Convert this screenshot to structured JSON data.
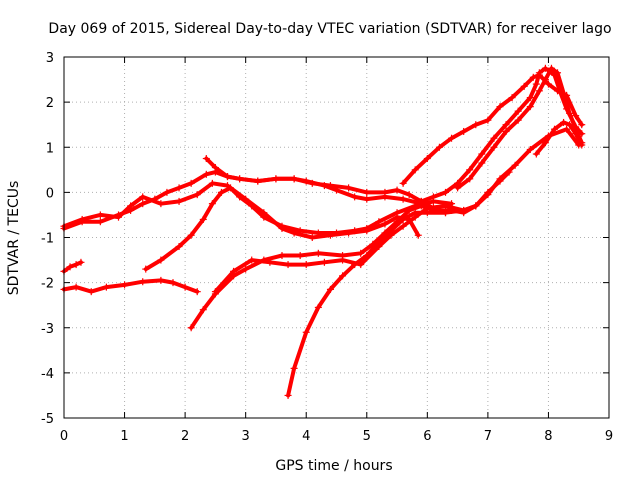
{
  "chart_data": {
    "type": "scatter",
    "title": "Day 069 of 2015, Sidereal Day-to-day VTEC variation (SDTVAR) for receiver lago",
    "xlabel": "GPS time / hours",
    "ylabel": "SDTVAR / TECUs",
    "xlim": [
      0,
      9
    ],
    "ylim": [
      -5,
      3
    ],
    "x_ticks": [
      "0",
      "1",
      "2",
      "3",
      "4",
      "5",
      "6",
      "7",
      "8",
      "9"
    ],
    "y_ticks": [
      "-5",
      "-4",
      "-3",
      "-2",
      "-1",
      "0",
      "1",
      "2",
      "3"
    ],
    "grid": true,
    "marker": "plus",
    "color": "#ff0000",
    "series": [
      {
        "points": [
          [
            0.0,
            -0.8
          ],
          [
            0.3,
            -0.65
          ],
          [
            0.6,
            -0.65
          ],
          [
            0.9,
            -0.5
          ],
          [
            1.1,
            -0.4
          ],
          [
            1.3,
            -0.25
          ],
          [
            1.5,
            -0.15
          ],
          [
            1.7,
            0.0
          ],
          [
            1.9,
            0.1
          ],
          [
            2.1,
            0.2
          ],
          [
            2.35,
            0.4
          ],
          [
            2.5,
            0.45
          ],
          [
            2.7,
            0.35
          ],
          [
            2.9,
            0.3
          ],
          [
            3.2,
            0.25
          ],
          [
            3.5,
            0.3
          ],
          [
            3.8,
            0.3
          ],
          [
            4.0,
            0.25
          ],
          [
            4.3,
            0.15
          ],
          [
            4.5,
            0.05
          ],
          [
            4.8,
            -0.1
          ],
          [
            5.0,
            -0.15
          ],
          [
            5.3,
            -0.1
          ],
          [
            5.6,
            -0.15
          ],
          [
            5.9,
            -0.25
          ],
          [
            6.2,
            -0.4
          ]
        ]
      },
      {
        "points": [
          [
            0.0,
            -0.75
          ],
          [
            0.3,
            -0.6
          ],
          [
            0.6,
            -0.5
          ],
          [
            0.9,
            -0.55
          ],
          [
            1.1,
            -0.3
          ],
          [
            1.3,
            -0.1
          ],
          [
            1.6,
            -0.25
          ],
          [
            1.9,
            -0.2
          ],
          [
            2.2,
            -0.05
          ],
          [
            2.45,
            0.2
          ],
          [
            2.7,
            0.15
          ],
          [
            3.0,
            -0.15
          ],
          [
            3.3,
            -0.45
          ],
          [
            3.6,
            -0.8
          ],
          [
            3.8,
            -0.9
          ],
          [
            4.1,
            -1.0
          ],
          [
            4.4,
            -0.95
          ],
          [
            4.7,
            -0.9
          ],
          [
            5.0,
            -0.85
          ],
          [
            5.3,
            -0.7
          ],
          [
            5.5,
            -0.55
          ],
          [
            5.7,
            -0.6
          ],
          [
            5.85,
            -0.95
          ]
        ]
      },
      {
        "points": [
          [
            0.0,
            -1.75
          ],
          [
            0.1,
            -1.65
          ],
          [
            0.2,
            -1.6
          ],
          [
            0.28,
            -1.55
          ]
        ]
      },
      {
        "points": [
          [
            0.0,
            -2.15
          ],
          [
            0.2,
            -2.1
          ],
          [
            0.45,
            -2.2
          ],
          [
            0.7,
            -2.1
          ],
          [
            1.0,
            -2.05
          ],
          [
            1.3,
            -1.98
          ],
          [
            1.6,
            -1.95
          ],
          [
            1.8,
            -2.0
          ],
          [
            2.0,
            -2.1
          ],
          [
            2.2,
            -2.2
          ]
        ]
      },
      {
        "points": [
          [
            1.35,
            -1.7
          ],
          [
            1.6,
            -1.5
          ],
          [
            1.9,
            -1.2
          ],
          [
            2.1,
            -0.95
          ],
          [
            2.3,
            -0.6
          ],
          [
            2.45,
            -0.25
          ],
          [
            2.6,
            0.0
          ],
          [
            2.75,
            0.1
          ],
          [
            2.9,
            -0.1
          ],
          [
            3.1,
            -0.3
          ],
          [
            3.3,
            -0.55
          ],
          [
            3.6,
            -0.75
          ],
          [
            3.9,
            -0.85
          ],
          [
            4.2,
            -0.9
          ],
          [
            4.5,
            -0.9
          ],
          [
            4.8,
            -0.85
          ],
          [
            5.0,
            -0.8
          ],
          [
            5.2,
            -0.65
          ],
          [
            5.5,
            -0.45
          ],
          [
            5.8,
            -0.3
          ],
          [
            6.1,
            -0.2
          ],
          [
            6.4,
            -0.25
          ]
        ]
      },
      {
        "points": [
          [
            2.35,
            0.75
          ],
          [
            2.5,
            0.55
          ],
          [
            2.7,
            0.35
          ],
          [
            2.9,
            0.3
          ],
          [
            3.2,
            0.25
          ],
          [
            3.5,
            0.3
          ],
          [
            3.8,
            0.3
          ],
          [
            4.1,
            0.2
          ],
          [
            4.4,
            0.15
          ],
          [
            4.7,
            0.1
          ],
          [
            5.0,
            0.0
          ],
          [
            5.3,
            0.0
          ],
          [
            5.5,
            0.05
          ],
          [
            5.7,
            -0.05
          ],
          [
            5.9,
            -0.2
          ],
          [
            6.1,
            -0.35
          ],
          [
            6.3,
            -0.45
          ]
        ]
      },
      {
        "points": [
          [
            2.1,
            -3.0
          ],
          [
            2.3,
            -2.6
          ],
          [
            2.5,
            -2.25
          ],
          [
            2.8,
            -1.85
          ],
          [
            3.0,
            -1.7
          ],
          [
            3.3,
            -1.5
          ],
          [
            3.6,
            -1.4
          ],
          [
            3.9,
            -1.4
          ],
          [
            4.2,
            -1.35
          ],
          [
            4.6,
            -1.4
          ],
          [
            4.9,
            -1.35
          ],
          [
            5.1,
            -1.15
          ],
          [
            5.3,
            -0.9
          ],
          [
            5.5,
            -0.65
          ],
          [
            5.7,
            -0.4
          ],
          [
            5.9,
            -0.3
          ],
          [
            6.1,
            -0.4
          ],
          [
            6.4,
            -0.4
          ],
          [
            6.6,
            -0.45
          ],
          [
            6.8,
            -0.3
          ],
          [
            7.0,
            0.0
          ],
          [
            7.2,
            0.25
          ],
          [
            7.35,
            0.45
          ]
        ]
      },
      {
        "points": [
          [
            2.5,
            -2.2
          ],
          [
            2.8,
            -1.75
          ],
          [
            3.1,
            -1.5
          ],
          [
            3.4,
            -1.55
          ],
          [
            3.7,
            -1.6
          ],
          [
            4.0,
            -1.6
          ],
          [
            4.3,
            -1.55
          ],
          [
            4.6,
            -1.5
          ],
          [
            4.9,
            -1.6
          ],
          [
            5.2,
            -1.2
          ],
          [
            5.4,
            -0.95
          ],
          [
            5.6,
            -0.75
          ],
          [
            5.8,
            -0.55
          ],
          [
            6.0,
            -0.35
          ],
          [
            6.3,
            -0.3
          ],
          [
            6.6,
            -0.4
          ],
          [
            6.8,
            -0.3
          ],
          [
            7.0,
            -0.05
          ],
          [
            7.2,
            0.3
          ],
          [
            7.45,
            0.6
          ],
          [
            7.7,
            0.95
          ],
          [
            8.0,
            1.25
          ],
          [
            8.3,
            1.4
          ],
          [
            8.5,
            1.05
          ]
        ]
      },
      {
        "points": [
          [
            3.7,
            -4.5
          ],
          [
            3.8,
            -3.9
          ],
          [
            4.0,
            -3.1
          ],
          [
            4.2,
            -2.55
          ],
          [
            4.4,
            -2.15
          ],
          [
            4.6,
            -1.85
          ],
          [
            4.8,
            -1.6
          ],
          [
            5.0,
            -1.4
          ],
          [
            5.2,
            -1.1
          ],
          [
            5.4,
            -0.85
          ],
          [
            5.6,
            -0.6
          ],
          [
            5.8,
            -0.45
          ],
          [
            6.0,
            -0.45
          ],
          [
            6.3,
            -0.45
          ],
          [
            6.6,
            -0.4
          ],
          [
            6.8,
            -0.3
          ]
        ]
      },
      {
        "points": [
          [
            5.6,
            0.2
          ],
          [
            5.8,
            0.5
          ],
          [
            6.0,
            0.75
          ],
          [
            6.2,
            1.0
          ],
          [
            6.4,
            1.2
          ],
          [
            6.6,
            1.35
          ],
          [
            6.8,
            1.5
          ],
          [
            7.0,
            1.6
          ],
          [
            7.2,
            1.9
          ],
          [
            7.4,
            2.1
          ],
          [
            7.6,
            2.35
          ],
          [
            7.75,
            2.55
          ],
          [
            7.85,
            2.6
          ],
          [
            8.0,
            2.4
          ],
          [
            8.15,
            2.25
          ],
          [
            8.3,
            2.15
          ],
          [
            8.45,
            1.7
          ],
          [
            8.55,
            1.5
          ]
        ]
      },
      {
        "points": [
          [
            5.9,
            -0.2
          ],
          [
            6.1,
            -0.1
          ],
          [
            6.3,
            0.0
          ],
          [
            6.5,
            0.2
          ],
          [
            6.7,
            0.5
          ],
          [
            6.9,
            0.85
          ],
          [
            7.1,
            1.2
          ],
          [
            7.3,
            1.5
          ],
          [
            7.5,
            1.8
          ],
          [
            7.7,
            2.1
          ],
          [
            7.8,
            2.4
          ],
          [
            7.85,
            2.65
          ],
          [
            7.95,
            2.75
          ],
          [
            8.1,
            2.6
          ],
          [
            8.2,
            2.2
          ],
          [
            8.3,
            1.85
          ],
          [
            8.45,
            1.45
          ],
          [
            8.55,
            1.3
          ]
        ]
      },
      {
        "points": [
          [
            6.5,
            0.1
          ],
          [
            6.7,
            0.3
          ],
          [
            6.9,
            0.65
          ],
          [
            7.1,
            1.0
          ],
          [
            7.3,
            1.35
          ],
          [
            7.5,
            1.6
          ],
          [
            7.7,
            1.9
          ],
          [
            7.85,
            2.25
          ],
          [
            7.95,
            2.5
          ],
          [
            8.05,
            2.75
          ],
          [
            8.15,
            2.65
          ],
          [
            8.25,
            2.2
          ],
          [
            8.35,
            1.75
          ],
          [
            8.45,
            1.4
          ],
          [
            8.55,
            1.1
          ]
        ]
      },
      {
        "points": [
          [
            7.8,
            0.85
          ],
          [
            7.95,
            1.1
          ],
          [
            8.1,
            1.4
          ],
          [
            8.25,
            1.55
          ],
          [
            8.35,
            1.5
          ],
          [
            8.45,
            1.3
          ],
          [
            8.55,
            1.05
          ]
        ]
      }
    ]
  }
}
